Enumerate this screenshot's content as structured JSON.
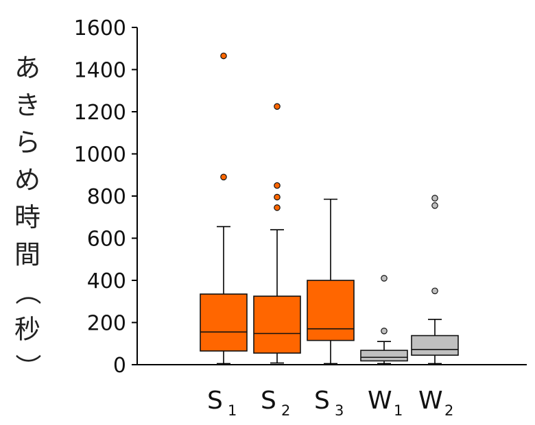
{
  "chart_data": {
    "type": "box",
    "ylabel": "あきらめ時間（秒）",
    "ylim": [
      0,
      1600
    ],
    "yticks": [
      "0",
      "200",
      "400",
      "600",
      "800",
      "1000",
      "1200",
      "1400",
      "1600"
    ],
    "grid": false,
    "boxes": [
      {
        "main": "S",
        "sub": "1",
        "color": "#FF6600",
        "whisker_low": 5,
        "q1": 65,
        "median": 155,
        "q3": 335,
        "whisker_high": 655,
        "outliers": [
          890,
          1465
        ]
      },
      {
        "main": "S",
        "sub": "2",
        "color": "#FF6600",
        "whisker_low": 8,
        "q1": 55,
        "median": 148,
        "q3": 325,
        "whisker_high": 640,
        "outliers": [
          745,
          795,
          850,
          1225
        ]
      },
      {
        "main": "S",
        "sub": "3",
        "color": "#FF6600",
        "whisker_low": 5,
        "q1": 115,
        "median": 170,
        "q3": 400,
        "whisker_high": 785,
        "outliers": []
      },
      {
        "main": "W",
        "sub": "1",
        "color": "#C0C0C0",
        "whisker_low": 5,
        "q1": 18,
        "median": 35,
        "q3": 68,
        "whisker_high": 110,
        "outliers": [
          160,
          410
        ]
      },
      {
        "main": "W",
        "sub": "2",
        "color": "#C0C0C0",
        "whisker_low": 5,
        "q1": 45,
        "median": 72,
        "q3": 138,
        "whisker_high": 215,
        "outliers": [
          350,
          755,
          790
        ]
      }
    ]
  }
}
